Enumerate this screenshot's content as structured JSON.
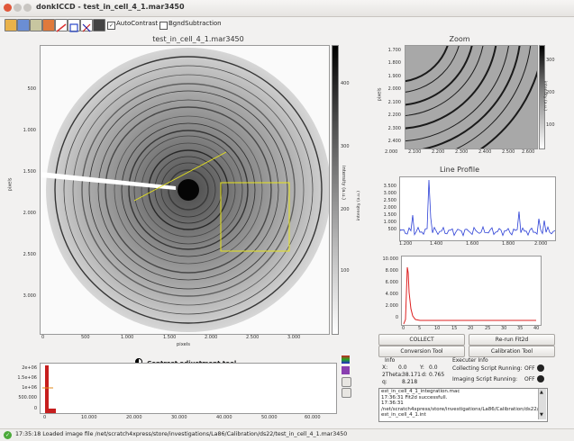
{
  "window": {
    "title": "donkICCD - test_in_cell_4_1.mar3450"
  },
  "toolbar": {
    "tools": [
      "open-icon",
      "save-icon",
      "export-icon",
      "measure-icon",
      "line-icon",
      "zoom-icon",
      "cursor-icon",
      "mask-icon"
    ],
    "autocontrast_label": "AutoContrast",
    "autocontrast_checked": true,
    "bgnd_label": "BgndSubtraction",
    "bgnd_checked": false
  },
  "main_image": {
    "title": "test_in_cell_4_1.mar3450",
    "ylabel": "pixels",
    "xlabel": "pixels",
    "y_ticks": [
      "500",
      "1.000",
      "1.500",
      "2.000",
      "2.500",
      "3.000"
    ],
    "x_ticks": [
      "0",
      "500",
      "1.000",
      "1.500",
      "2.000",
      "2.500",
      "3.000"
    ],
    "colorbar_label": "intensity (a.u.)",
    "colorbar_ticks": [
      "400",
      "300",
      "200",
      "100"
    ]
  },
  "zoom": {
    "title": "Zoom",
    "ylabel": "pixels",
    "y_ticks": [
      "1.700",
      "1.800",
      "1.900",
      "2.000",
      "2.100",
      "2.200",
      "2.300",
      "2.400"
    ],
    "x_ticks": [
      "2.000",
      "2.100",
      "2.200",
      "2.300",
      "2.400",
      "2.500",
      "2.600"
    ],
    "colorbar_ticks": [
      "300",
      "200",
      "100"
    ],
    "colorbar_label": "intensity (a.u.)"
  },
  "line_profile": {
    "title": "Line Profile",
    "ylabel": "intensity (a.u.)",
    "y_ticks": [
      "3.500",
      "3.000",
      "2.500",
      "2.000",
      "1.500",
      "1.000",
      "500"
    ],
    "x_ticks": [
      "1.200",
      "1.400",
      "1.600",
      "1.800",
      "2.000"
    ],
    "color": "#2b3fd6"
  },
  "integration_plot": {
    "y_ticks": [
      "10.000",
      "8.000",
      "6.000",
      "4.000",
      "2.000",
      "0"
    ],
    "x_ticks": [
      "0",
      "5",
      "10",
      "15",
      "20",
      "25",
      "30",
      "35",
      "40"
    ],
    "color": "#dd2020"
  },
  "buttons": {
    "collect": "COLLECT",
    "rerun": "Re-run Fit2d",
    "conversion": "Conversion Tool",
    "calibration": "Calibration Tool"
  },
  "contrast": {
    "title": "Contrast adjustment tool",
    "y_ticks": [
      "2e+06",
      "1.5e+06",
      "1e+06",
      "500.000",
      "0"
    ],
    "x_ticks": [
      "0",
      "10.000",
      "20.000",
      "30.000",
      "40.000",
      "50.000",
      "60.000"
    ]
  },
  "info": {
    "title": "Info",
    "x_label": "X:",
    "x_value": "0.0",
    "y_label": "Y:",
    "y_value": "0.0",
    "two_theta_label": "2Theta:",
    "two_theta_value": "38.171",
    "d_label": "d:",
    "d_value": "0.765",
    "q_label": "q:",
    "q_value": "8.218"
  },
  "executer": {
    "title": "Executer Info",
    "collecting_label": "Collecting Script Running:",
    "collecting_state": "OFF",
    "imaging_label": "Imaging Script Running:",
    "imaging_state": "OFF"
  },
  "log": {
    "lines": [
      "est_in_cell_4_1_integration.mac",
      "17:36:31 Fit2d successfull.",
      "17:36:31",
      "/net/scratch4xpress/store/investigations/La86/Calibration/ds22/t",
      "est_in_cell_4_1.int"
    ]
  },
  "status": {
    "text": "17:35:18 Loaded image file /net/scratch4xpress/store/investigations/La86/Calibration/ds22/test_in_cell_4_1.mar3450"
  },
  "colors": {
    "selection": "#e8e41a",
    "beam": "#ffffff"
  }
}
